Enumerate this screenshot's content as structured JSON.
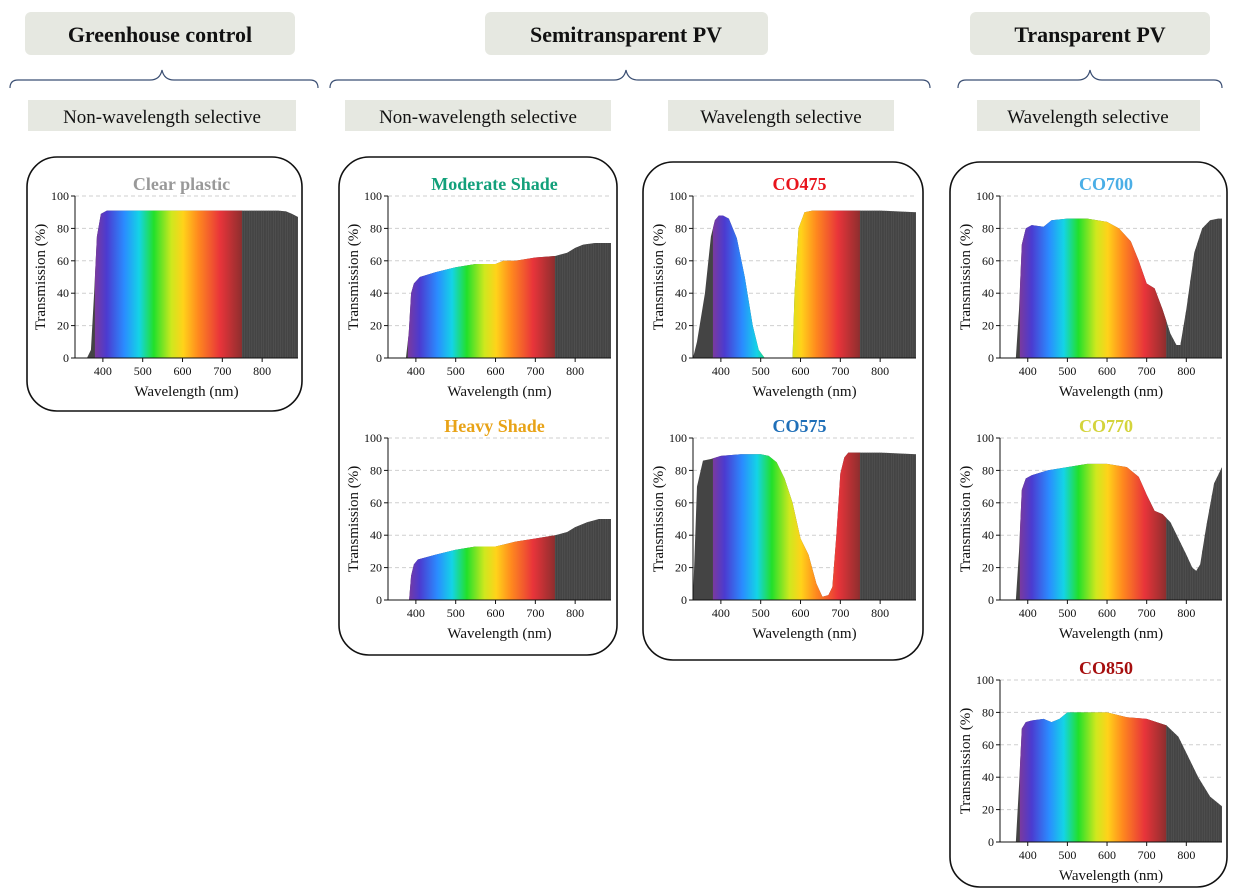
{
  "categories": [
    {
      "id": "greenhouse",
      "label": "Greenhouse control",
      "subgroups": [
        "Non-wavelength selective"
      ]
    },
    {
      "id": "semi",
      "label": "Semitransparent PV",
      "subgroups": [
        "Non-wavelength selective",
        "Wavelength selective"
      ]
    },
    {
      "id": "trans",
      "label": "Transparent PV",
      "subgroups": [
        "Wavelength selective"
      ]
    }
  ],
  "colors": {
    "label_bg": "#e6e8e1",
    "bracket": "#3b4f73",
    "nir_fill": "#444444",
    "grid": "#cfcfcf"
  },
  "chart_data": [
    {
      "type": "area",
      "title": "Clear plastic",
      "title_color": "#999999",
      "xlabel": "Wavelength (nm)",
      "ylabel": "Transmission (%)",
      "xlim": [
        330,
        890
      ],
      "ylim": [
        0,
        100
      ],
      "xticks": [
        400,
        500,
        600,
        700,
        800
      ],
      "yticks": [
        0,
        20,
        40,
        60,
        80,
        100
      ],
      "x": [
        330,
        360,
        370,
        378,
        385,
        395,
        410,
        450,
        500,
        550,
        600,
        650,
        700,
        750,
        800,
        840,
        860,
        875,
        890
      ],
      "y": [
        0,
        0,
        5,
        40,
        75,
        89,
        91,
        91,
        91,
        91,
        91,
        91,
        91,
        91,
        91,
        91,
        90.5,
        89,
        87
      ]
    },
    {
      "type": "area",
      "title": "Moderate Shade",
      "title_color": "#12a07a",
      "xlabel": "Wavelength (nm)",
      "ylabel": "Transmission (%)",
      "xlim": [
        330,
        890
      ],
      "ylim": [
        0,
        100
      ],
      "xticks": [
        400,
        500,
        600,
        700,
        800
      ],
      "yticks": [
        0,
        20,
        40,
        60,
        80,
        100
      ],
      "x": [
        330,
        375,
        382,
        388,
        395,
        410,
        450,
        500,
        550,
        600,
        620,
        650,
        700,
        750,
        780,
        800,
        820,
        850,
        890
      ],
      "y": [
        0,
        0,
        15,
        40,
        46,
        50,
        53,
        56,
        58,
        58,
        60,
        60,
        62,
        63,
        65,
        68,
        70,
        71,
        71
      ]
    },
    {
      "type": "area",
      "title": "Heavy Shade",
      "title_color": "#e8a317",
      "xlabel": "Wavelength (nm)",
      "ylabel": "Transmission (%)",
      "xlim": [
        330,
        890
      ],
      "ylim": [
        0,
        100
      ],
      "xticks": [
        400,
        500,
        600,
        700,
        800
      ],
      "yticks": [
        0,
        20,
        40,
        60,
        80,
        100
      ],
      "x": [
        330,
        383,
        388,
        395,
        405,
        450,
        500,
        550,
        600,
        650,
        700,
        750,
        780,
        800,
        830,
        860,
        890
      ],
      "y": [
        0,
        0,
        15,
        22,
        25,
        28,
        31,
        33,
        33,
        36,
        38,
        40,
        42,
        45,
        48,
        50,
        50
      ]
    },
    {
      "type": "area",
      "title": "CO475",
      "title_color": "#e8141c",
      "xlabel": "Wavelength (nm)",
      "ylabel": "Transmission (%)",
      "xlim": [
        330,
        890
      ],
      "ylim": [
        0,
        100
      ],
      "xticks": [
        400,
        500,
        600,
        700,
        800
      ],
      "yticks": [
        0,
        20,
        40,
        60,
        80,
        100
      ],
      "x": [
        330,
        340,
        360,
        375,
        385,
        395,
        405,
        420,
        440,
        460,
        480,
        495,
        510,
        560,
        580,
        585,
        595,
        610,
        630,
        700,
        800,
        890
      ],
      "y": [
        0,
        10,
        40,
        75,
        85,
        88,
        88,
        86,
        74,
        50,
        20,
        5,
        0,
        0,
        0,
        40,
        80,
        90,
        91,
        91,
        91,
        90
      ]
    },
    {
      "type": "area",
      "title": "CO575",
      "title_color": "#1f6fb8",
      "xlabel": "Wavelength (nm)",
      "ylabel": "Transmission (%)",
      "xlim": [
        330,
        890
      ],
      "ylim": [
        0,
        100
      ],
      "xticks": [
        400,
        500,
        600,
        700,
        800
      ],
      "yticks": [
        0,
        20,
        40,
        60,
        80,
        100
      ],
      "x": [
        330,
        340,
        355,
        375,
        400,
        450,
        500,
        520,
        540,
        560,
        580,
        600,
        620,
        640,
        655,
        670,
        680,
        690,
        700,
        710,
        720,
        730,
        800,
        890
      ],
      "y": [
        0,
        70,
        86,
        87,
        89,
        90,
        90,
        89,
        85,
        75,
        60,
        38,
        28,
        10,
        2,
        3,
        8,
        40,
        78,
        88,
        91,
        91,
        91,
        90
      ]
    },
    {
      "type": "area",
      "title": "CO700",
      "title_color": "#4aaee6",
      "xlabel": "Wavelength (nm)",
      "ylabel": "Transmission (%)",
      "xlim": [
        330,
        890
      ],
      "ylim": [
        0,
        100
      ],
      "xticks": [
        400,
        500,
        600,
        700,
        800
      ],
      "yticks": [
        0,
        20,
        40,
        60,
        80,
        100
      ],
      "x": [
        330,
        370,
        378,
        385,
        395,
        410,
        440,
        450,
        460,
        500,
        550,
        600,
        630,
        660,
        680,
        700,
        720,
        740,
        760,
        775,
        785,
        800,
        820,
        840,
        860,
        880,
        890
      ],
      "y": [
        0,
        0,
        30,
        70,
        80,
        82,
        81,
        83,
        85,
        86,
        86,
        84,
        80,
        72,
        60,
        46,
        43,
        30,
        15,
        8,
        8,
        30,
        65,
        80,
        85,
        86,
        86
      ]
    },
    {
      "type": "area",
      "title": "CO770",
      "title_color": "#d4d43c",
      "xlabel": "Wavelength (nm)",
      "ylabel": "Transmission (%)",
      "xlim": [
        330,
        890
      ],
      "ylim": [
        0,
        100
      ],
      "xticks": [
        400,
        500,
        600,
        700,
        800
      ],
      "yticks": [
        0,
        20,
        40,
        60,
        80,
        100
      ],
      "x": [
        330,
        370,
        378,
        385,
        395,
        410,
        450,
        500,
        550,
        600,
        650,
        680,
        700,
        720,
        740,
        760,
        780,
        800,
        815,
        825,
        835,
        850,
        870,
        890
      ],
      "y": [
        0,
        0,
        30,
        68,
        75,
        77,
        80,
        82,
        84,
        84,
        82,
        76,
        65,
        55,
        53,
        48,
        38,
        28,
        20,
        18,
        22,
        45,
        72,
        82
      ]
    },
    {
      "type": "area",
      "title": "CO850",
      "title_color": "#a60f0f",
      "xlabel": "Wavelength (nm)",
      "ylabel": "Transmission (%)",
      "xlim": [
        330,
        890
      ],
      "ylim": [
        0,
        100
      ],
      "xticks": [
        400,
        500,
        600,
        700,
        800
      ],
      "yticks": [
        0,
        20,
        40,
        60,
        80,
        100
      ],
      "x": [
        330,
        370,
        378,
        385,
        395,
        410,
        440,
        460,
        480,
        500,
        550,
        600,
        650,
        700,
        750,
        780,
        800,
        830,
        860,
        890
      ],
      "y": [
        0,
        0,
        35,
        70,
        74,
        75,
        76,
        74,
        76,
        80,
        80,
        80,
        77,
        76,
        72,
        65,
        55,
        40,
        28,
        22
      ]
    }
  ]
}
